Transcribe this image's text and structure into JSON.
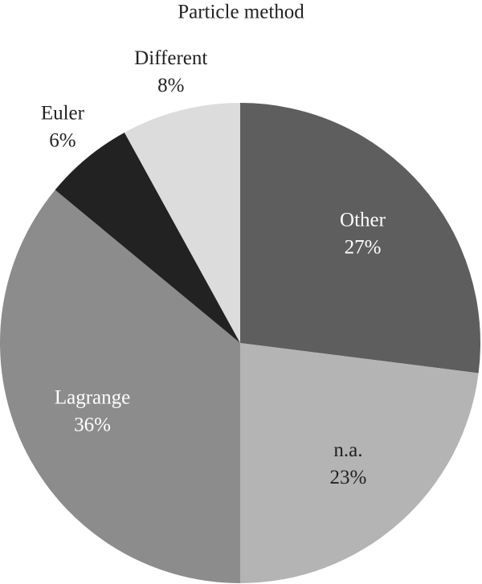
{
  "chart_data": {
    "type": "pie",
    "title": "Particle method",
    "categories": [
      "Other",
      "n.a.",
      "Lagrange",
      "Euler",
      "Different"
    ],
    "values": [
      27,
      23,
      36,
      6,
      8
    ],
    "value_labels": [
      "27%",
      "23%",
      "36%",
      "6%",
      "8%"
    ],
    "colors": [
      "#5e5e5e",
      "#b4b4b4",
      "#8c8c8c",
      "#222222",
      "#dcdcdc"
    ]
  }
}
